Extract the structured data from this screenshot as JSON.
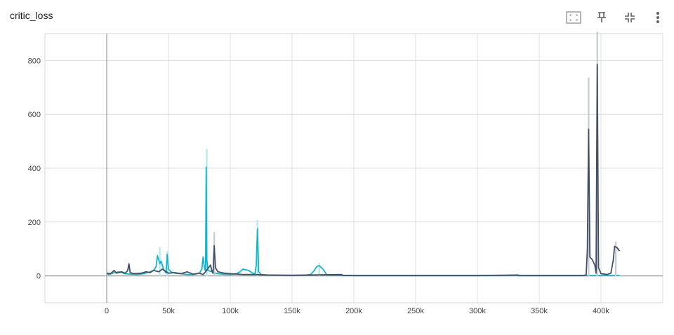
{
  "card": {
    "title": "critic_loss",
    "toolbar": [
      {
        "name": "fit-domain-icon"
      },
      {
        "name": "pin-icon"
      },
      {
        "name": "collapse-icon"
      },
      {
        "name": "more-vert-icon"
      }
    ]
  },
  "chart_data": {
    "type": "line",
    "title": "critic_loss",
    "xlabel": "",
    "ylabel": "",
    "xlim": [
      -50000,
      450000
    ],
    "ylim": [
      -100,
      900
    ],
    "x_ticks": [
      0,
      50000,
      100000,
      150000,
      200000,
      250000,
      300000,
      350000,
      400000
    ],
    "x_tick_labels": [
      "0",
      "50k",
      "100k",
      "150k",
      "200k",
      "250k",
      "300k",
      "350k",
      "400k"
    ],
    "y_ticks": [
      0,
      200,
      400,
      600,
      800
    ],
    "y_tick_labels": [
      "0",
      "200",
      "400",
      "600",
      "800"
    ],
    "grid": true,
    "series": [
      {
        "color": "#12b5cb",
        "raw_color": "#b3e8f0",
        "x": [
          0,
          2000,
          5000,
          10000,
          15000,
          20000,
          25000,
          30000,
          35000,
          38000,
          40000,
          41000,
          42000,
          43000,
          44000,
          45000,
          46000,
          48000,
          49000,
          50000,
          52000,
          55000,
          60000,
          65000,
          70000,
          75000,
          77000,
          78000,
          79000,
          80000,
          80500,
          81000,
          82000,
          85000,
          88000,
          90000,
          95000,
          100000,
          105000,
          108000,
          110000,
          115000,
          118000,
          120000,
          121000,
          122000,
          123000,
          125000,
          130000,
          140000,
          150000,
          160000,
          165000,
          168000,
          170000,
          172000,
          175000,
          178000,
          180000,
          190000,
          200000,
          250000,
          300000,
          350000,
          385000,
          390000,
          395000,
          397000,
          400000,
          405000,
          410000,
          415000
        ],
        "y": [
          8,
          5,
          10,
          15,
          8,
          6,
          5,
          8,
          15,
          20,
          35,
          75,
          60,
          45,
          55,
          40,
          25,
          10,
          80,
          25,
          15,
          10,
          8,
          5,
          5,
          10,
          25,
          70,
          35,
          15,
          405,
          60,
          20,
          15,
          10,
          8,
          6,
          5,
          8,
          15,
          25,
          20,
          10,
          8,
          40,
          175,
          15,
          5,
          3,
          2,
          2,
          2,
          5,
          20,
          35,
          38,
          25,
          5,
          2,
          1,
          1,
          1,
          1,
          1,
          1,
          1,
          1,
          1,
          1,
          1,
          1,
          1
        ],
        "raw_peaks": [
          [
            81000,
            470
          ],
          [
            122000,
            205
          ],
          [
            43000,
            105
          ],
          [
            49000,
            90
          ],
          [
            172000,
            45
          ]
        ]
      },
      {
        "color": "#425066",
        "raw_color": "#c5cad3",
        "x": [
          0,
          3000,
          6000,
          8000,
          12000,
          15000,
          17000,
          18000,
          19000,
          22000,
          28000,
          32000,
          35000,
          38000,
          42000,
          45000,
          50000,
          55000,
          60000,
          65000,
          70000,
          75000,
          78000,
          80000,
          84000,
          85000,
          86000,
          87000,
          88000,
          90000,
          95000,
          100000,
          110000,
          120000,
          130000,
          150000,
          190000,
          191000,
          200000,
          250000,
          300000,
          333000,
          334000,
          350000,
          385000,
          388000,
          389000,
          390000,
          391000,
          393000,
          395000,
          396000,
          397000,
          398000,
          400000,
          405000,
          408000,
          410000,
          411000,
          413000,
          415000
        ],
        "y": [
          10,
          8,
          20,
          10,
          15,
          10,
          20,
          45,
          12,
          8,
          10,
          15,
          12,
          20,
          15,
          25,
          10,
          12,
          8,
          15,
          6,
          10,
          5,
          15,
          40,
          20,
          10,
          112,
          30,
          15,
          10,
          8,
          5,
          5,
          3,
          2,
          5,
          2,
          1,
          1,
          1,
          3,
          1,
          1,
          1,
          3,
          100,
          545,
          70,
          60,
          40,
          10,
          785,
          30,
          8,
          5,
          10,
          60,
          110,
          105,
          92
        ],
        "raw_peaks": [
          [
            87000,
            160
          ],
          [
            390000,
            735
          ],
          [
            397000,
            905
          ],
          [
            412000,
            125
          ]
        ]
      }
    ]
  }
}
